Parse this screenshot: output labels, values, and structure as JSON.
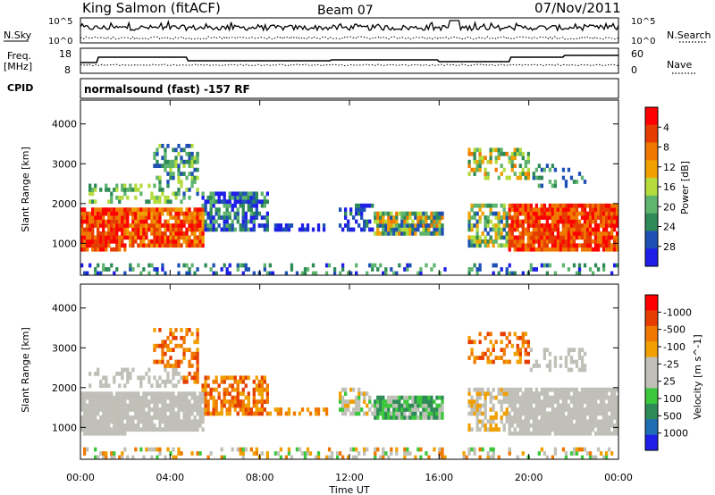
{
  "header": {
    "station": "King Salmon (fitACF)",
    "beam": "Beam 07",
    "date": "07/Nov/2011"
  },
  "noise_panel": {
    "left_label": "N.Sky",
    "right_label": "N.Search",
    "tick_top": "10^5",
    "tick_bottom": "10^0"
  },
  "freq_panel": {
    "left_label_1": "Freq.",
    "left_label_2": "[MHz]",
    "right_label": "Nave",
    "left_ticks": [
      "18",
      "8"
    ],
    "right_ticks": [
      "60",
      "0"
    ]
  },
  "cpid": {
    "label": "CPID",
    "value": "normalsound (fast) -157 RF"
  },
  "chart_data": [
    {
      "type": "heatmap",
      "name": "power",
      "ylabel": "Slant Range [km]",
      "ylim": [
        200,
        4600
      ],
      "yticks": [
        "1000",
        "2000",
        "3000",
        "4000"
      ],
      "colorbar_label": "Power [dB]",
      "colorbar_ticks": [
        "4",
        "8",
        "12",
        "16",
        "20",
        "24",
        "28"
      ],
      "colors": [
        "#1e1ee6",
        "#1e50b4",
        "#2e8b57",
        "#5fb46e",
        "#b4dc3c",
        "#f0a000",
        "#f07800",
        "#e63c00",
        "#ff0000"
      ]
    },
    {
      "type": "heatmap",
      "name": "velocity",
      "ylabel": "Slant Range [km]",
      "ylim": [
        200,
        4600
      ],
      "yticks": [
        "1000",
        "2000",
        "3000",
        "4000"
      ],
      "colorbar_label": "Velocity [m s^-1]",
      "colorbar_ticks": [
        "1000",
        "500",
        "100",
        "25",
        "-25",
        "-100",
        "-500",
        "-1000"
      ],
      "colors": [
        "#1e1ee6",
        "#1e6eb4",
        "#2e8b57",
        "#3cc83c",
        "#c0c0b8",
        "#c0c0b8",
        "#f0a000",
        "#f07800",
        "#e63c00",
        "#ff0000"
      ]
    }
  ],
  "xaxis": {
    "label": "Time UT",
    "ticks": [
      "00:00",
      "04:00",
      "08:00",
      "12:00",
      "16:00",
      "20:00",
      "00:00"
    ]
  }
}
